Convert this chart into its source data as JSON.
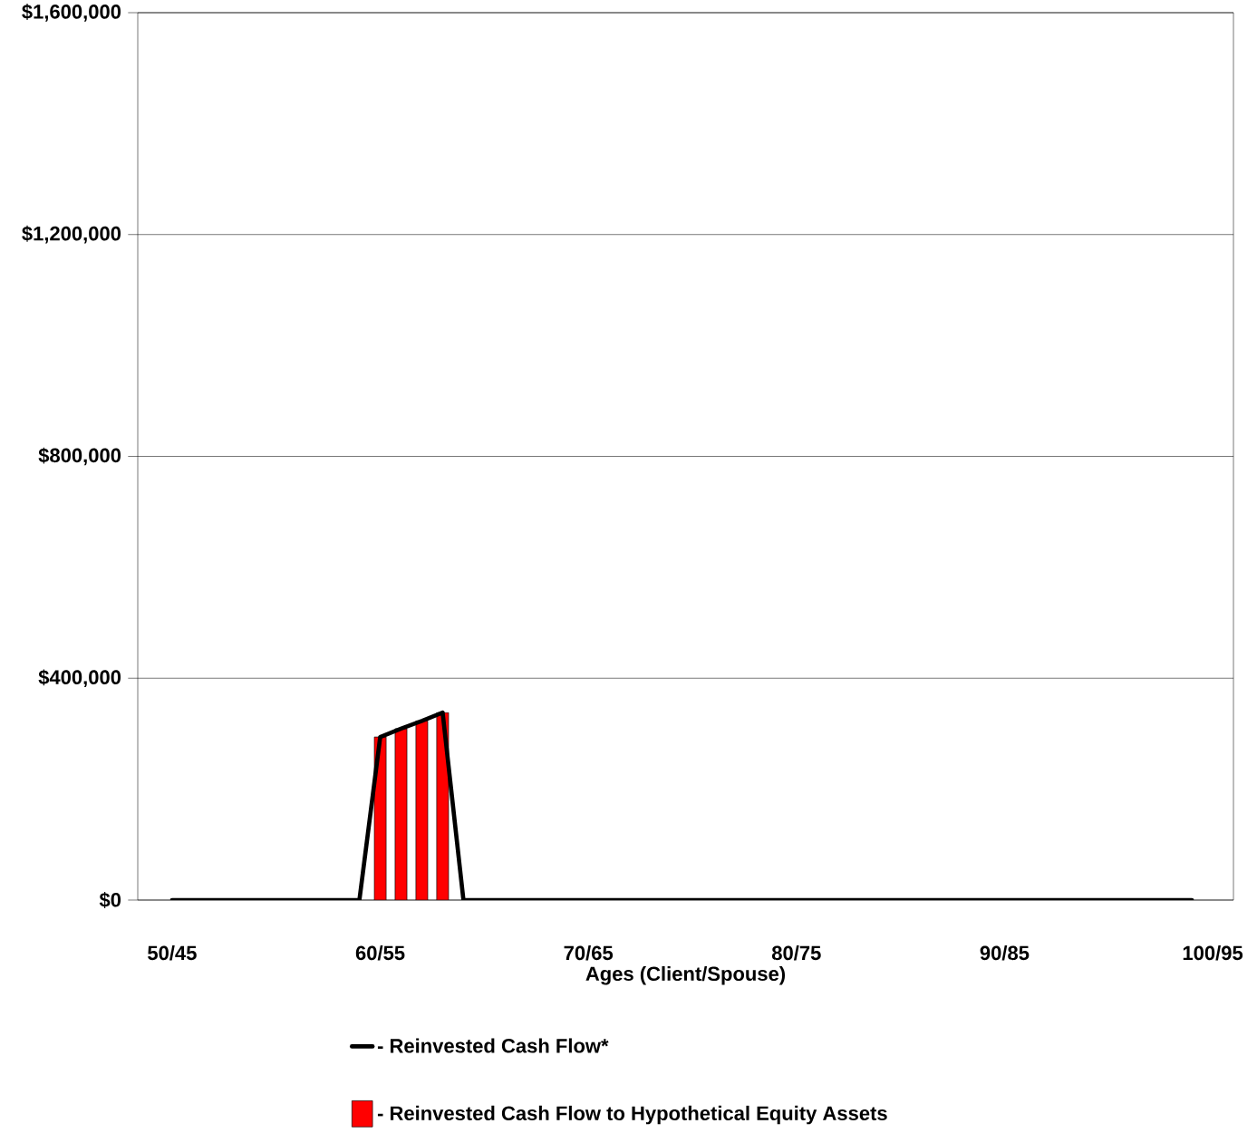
{
  "chart_data": {
    "type": "line",
    "xlabel": "Ages (Client/Spouse)",
    "categories": [
      "50/45",
      null,
      null,
      null,
      null,
      null,
      null,
      null,
      null,
      null,
      "60/55",
      null,
      null,
      null,
      null,
      null,
      null,
      null,
      null,
      null,
      "70/65",
      null,
      null,
      null,
      null,
      null,
      null,
      null,
      null,
      null,
      "80/75",
      null,
      null,
      null,
      null,
      null,
      null,
      null,
      null,
      null,
      "90/85",
      null,
      null,
      null,
      null,
      null,
      null,
      null,
      null,
      null,
      "100/95"
    ],
    "ylim": [
      0,
      1600000
    ],
    "yticks": [
      {
        "value": 0,
        "label": "$0"
      },
      {
        "value": 400000,
        "label": "$400,000"
      },
      {
        "value": 800000,
        "label": "$800,000"
      },
      {
        "value": 1200000,
        "label": "$1,200,000"
      },
      {
        "value": 1600000,
        "label": "$1,600,000"
      }
    ],
    "grid": "y",
    "legend": "bottom",
    "series": [
      {
        "name": "- Reinvested Cash Flow*",
        "color": "#000000",
        "values": [
          0,
          0,
          0,
          0,
          0,
          0,
          0,
          0,
          0,
          0,
          294000,
          309000,
          323000,
          338000,
          0,
          0,
          0,
          0,
          0,
          0,
          0,
          0,
          0,
          0,
          0,
          0,
          0,
          0,
          0,
          0,
          0,
          0,
          0,
          0,
          0,
          0,
          0,
          0,
          0,
          0,
          0,
          0,
          0,
          0,
          0,
          0,
          0,
          0,
          0,
          0,
          null
        ]
      },
      {
        "name": "- Reinvested Cash Flow to Hypothetical Equity Assets",
        "type": "bar",
        "color": "#ff0000",
        "values": [
          null,
          null,
          null,
          null,
          null,
          null,
          null,
          null,
          null,
          null,
          294000,
          309000,
          323000,
          338000,
          null,
          null,
          null,
          null,
          null,
          null,
          null,
          null,
          null,
          null,
          null,
          null,
          null,
          null,
          null,
          null,
          null,
          null,
          null,
          null,
          null,
          null,
          null,
          null,
          null,
          null,
          null,
          null,
          null,
          null,
          null,
          null,
          null,
          null,
          null,
          null,
          null
        ]
      }
    ]
  }
}
